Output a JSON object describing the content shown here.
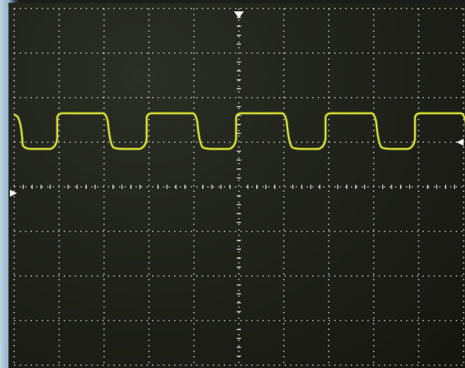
{
  "screen": {
    "title": "",
    "grid": {
      "divisions_x": 10,
      "divisions_y": 8,
      "minor_ticks_per_division": 5
    },
    "trace": {
      "color": "#e6f03a",
      "kind": "square-wave",
      "period_divisions": 2,
      "duty_cycle_high": 0.55
    },
    "markers": {
      "trigger_position_arrow_color": "#f2f2f2",
      "ground_marker_color": "#f2f2f2"
    }
  }
}
